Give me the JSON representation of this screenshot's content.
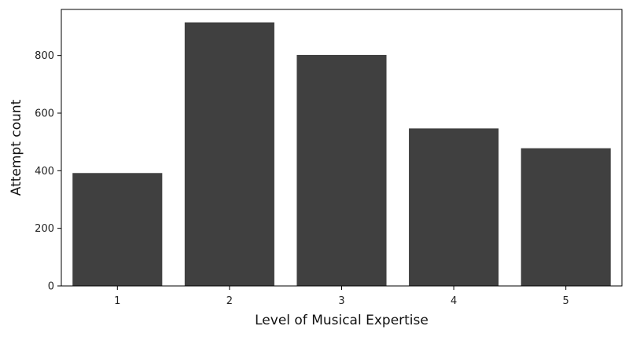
{
  "chart_data": {
    "type": "bar",
    "categories": [
      "1",
      "2",
      "3",
      "4",
      "5"
    ],
    "values": [
      392,
      915,
      802,
      547,
      478
    ],
    "xlabel": "Level of Musical Expertise",
    "ylabel": "Attempt count",
    "ylim": [
      0,
      960
    ],
    "yticks": [
      0,
      200,
      400,
      600,
      800
    ],
    "bar_color": "#404040",
    "grid": false,
    "legend": "none"
  }
}
